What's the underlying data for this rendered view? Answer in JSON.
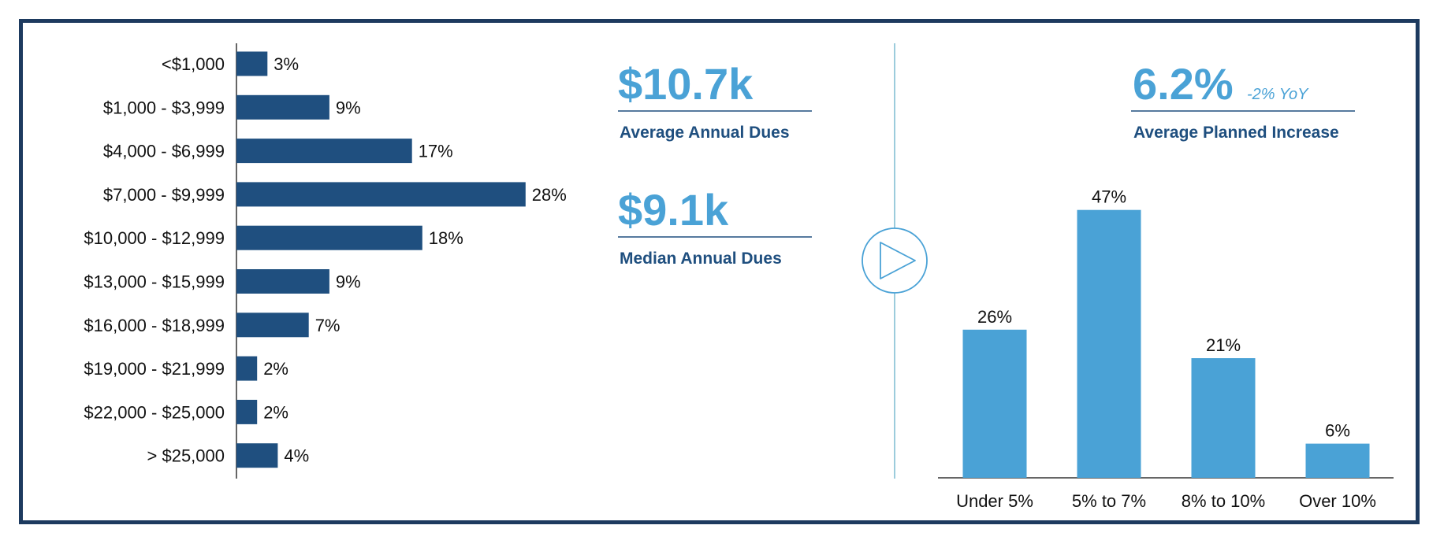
{
  "colors": {
    "frame": "#1d3a5f",
    "dark_bar": "#1f4f7f",
    "light_bar": "#4aa2d6",
    "divider": "#7cbcd1",
    "text": "#111111",
    "stat_label": "#1f4f7f"
  },
  "stats": {
    "average_annual_dues": {
      "value": "$10.7k",
      "label": "Average Annual Dues"
    },
    "median_annual_dues": {
      "value": "$9.1k",
      "label": "Median Annual Dues"
    },
    "average_planned_increase": {
      "value": "6.2%",
      "yoy": "-2% YoY",
      "label": "Average Planned Increase"
    }
  },
  "divider_icon": "play-icon",
  "chart_data": [
    {
      "type": "bar",
      "orientation": "horizontal",
      "categories": [
        "<$1,000",
        "$1,000 - $3,999",
        "$4,000 - $6,999",
        "$7,000 - $9,999",
        "$10,000 - $12,999",
        "$13,000 - $15,999",
        "$16,000 - $18,999",
        "$19,000 - $21,999",
        "$22,000 - $25,000",
        "> $25,000"
      ],
      "values": [
        3,
        9,
        17,
        28,
        18,
        9,
        7,
        2,
        2,
        4
      ],
      "value_labels": [
        "3%",
        "9%",
        "17%",
        "28%",
        "18%",
        "9%",
        "7%",
        "2%",
        "2%",
        "4%"
      ],
      "unit": "%",
      "title": "",
      "xlabel": "",
      "ylabel": "",
      "grid": false,
      "color": "#1f4f7f"
    },
    {
      "type": "bar",
      "orientation": "vertical",
      "categories": [
        "Under 5%",
        "5% to 7%",
        "8% to 10%",
        "Over 10%"
      ],
      "values": [
        26,
        47,
        21,
        6
      ],
      "value_labels": [
        "26%",
        "47%",
        "21%",
        "6%"
      ],
      "unit": "%",
      "title": "",
      "xlabel": "",
      "ylabel": "",
      "grid": false,
      "color": "#4aa2d6"
    }
  ]
}
